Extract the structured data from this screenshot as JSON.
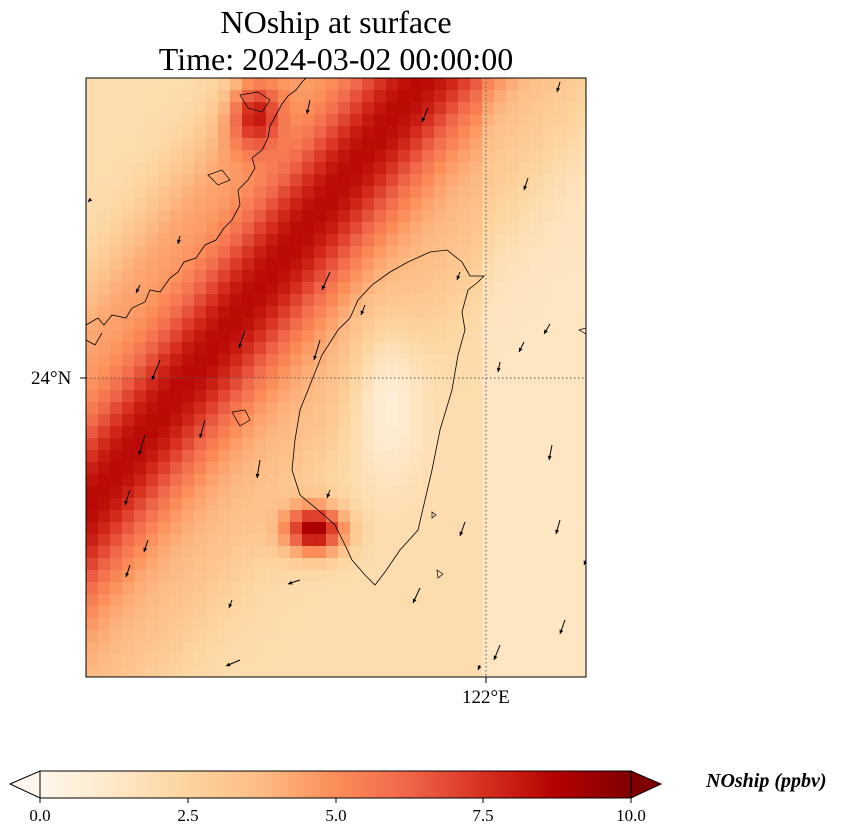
{
  "title": {
    "line1": "NOship at surface",
    "line2": "Time: 2024-03-02 00:00:00"
  },
  "axes": {
    "lat_label": "24°N",
    "lon_label": "122°E",
    "gridlines": "dotted"
  },
  "colorbar": {
    "label": "NOship (ppbv)",
    "colormap": "OrRd",
    "min": 0.0,
    "max": 10.0,
    "extend": "both",
    "ticks": [
      "0.0",
      "2.5",
      "5.0",
      "7.5",
      "10.0"
    ],
    "stops": [
      "#fff7ec",
      "#fee8c8",
      "#fdd49e",
      "#fdbb84",
      "#fc8d59",
      "#ef6548",
      "#d7301f",
      "#b30000",
      "#7f0000"
    ]
  },
  "map": {
    "region": "Taiwan Strait",
    "field": "NOship concentration with wind vectors",
    "hotspot_value": 10.0,
    "shipping_lane_value": 6.5
  }
}
